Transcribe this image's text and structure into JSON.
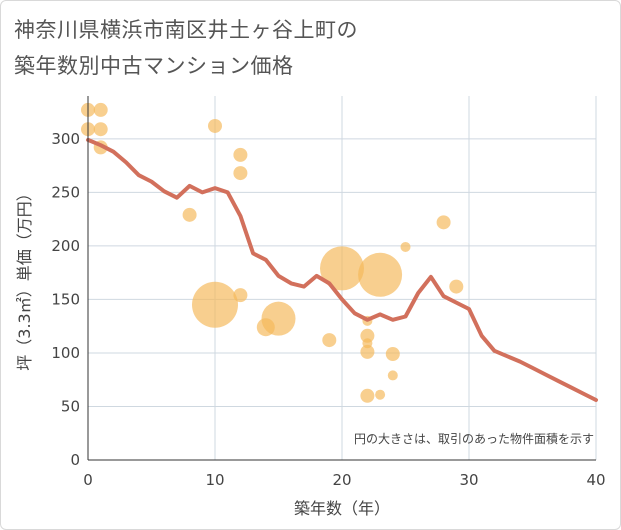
{
  "title_line1": "神奈川県横浜市南区井土ヶ谷上町の",
  "title_line2": "築年数別中古マンション価格",
  "chart_data": {
    "type": "scatter",
    "xlabel": "築年数（年）",
    "ylabel": "坪（3.3㎡）単価（万円）",
    "xlim": [
      0,
      40
    ],
    "ylim": [
      0,
      340
    ],
    "xticks": [
      0,
      10,
      20,
      30,
      40
    ],
    "yticks": [
      0,
      50,
      100,
      150,
      200,
      250,
      300
    ],
    "grid": true,
    "note": "円の大きさは、取引のあった物件面積を示す",
    "bubble_color": "#f5b85a",
    "line_color": "#d2705c",
    "bubbles": [
      {
        "x": 0,
        "y": 327,
        "s": 7
      },
      {
        "x": 0,
        "y": 309,
        "s": 7
      },
      {
        "x": 1,
        "y": 327,
        "s": 7
      },
      {
        "x": 1,
        "y": 309,
        "s": 7
      },
      {
        "x": 1,
        "y": 292,
        "s": 7
      },
      {
        "x": 10,
        "y": 312,
        "s": 7
      },
      {
        "x": 8,
        "y": 229,
        "s": 7
      },
      {
        "x": 12,
        "y": 285,
        "s": 7
      },
      {
        "x": 12,
        "y": 268,
        "s": 7
      },
      {
        "x": 12,
        "y": 154,
        "s": 7
      },
      {
        "x": 10,
        "y": 145,
        "s": 23
      },
      {
        "x": 14,
        "y": 124,
        "s": 9
      },
      {
        "x": 15,
        "y": 132,
        "s": 17
      },
      {
        "x": 19,
        "y": 112,
        "s": 7
      },
      {
        "x": 20,
        "y": 179,
        "s": 22
      },
      {
        "x": 23,
        "y": 173,
        "s": 22
      },
      {
        "x": 22,
        "y": 130,
        "s": 5
      },
      {
        "x": 22,
        "y": 116,
        "s": 7
      },
      {
        "x": 22,
        "y": 109,
        "s": 5
      },
      {
        "x": 22,
        "y": 101,
        "s": 7
      },
      {
        "x": 22,
        "y": 60,
        "s": 7
      },
      {
        "x": 23,
        "y": 61,
        "s": 5
      },
      {
        "x": 24,
        "y": 99,
        "s": 7
      },
      {
        "x": 24,
        "y": 79,
        "s": 5
      },
      {
        "x": 25,
        "y": 199,
        "s": 5
      },
      {
        "x": 28,
        "y": 222,
        "s": 7
      },
      {
        "x": 29,
        "y": 162,
        "s": 7
      }
    ],
    "trend": {
      "x": [
        0,
        1,
        2,
        3,
        4,
        5,
        6,
        7,
        8,
        9,
        10,
        11,
        12,
        13,
        14,
        15,
        16,
        17,
        18,
        19,
        20,
        21,
        22,
        23,
        24,
        25,
        26,
        27,
        28,
        29,
        30,
        31,
        32,
        33,
        34,
        35,
        36,
        37,
        38,
        39,
        40
      ],
      "y": [
        299,
        294,
        288,
        278,
        266,
        260,
        251,
        245,
        256,
        250,
        254,
        250,
        228,
        193,
        187,
        172,
        165,
        162,
        172,
        165,
        150,
        137,
        131,
        136,
        131,
        134,
        156,
        171,
        153,
        147,
        141,
        116,
        102,
        97,
        92,
        86,
        80,
        74,
        68,
        62,
        56
      ]
    }
  }
}
